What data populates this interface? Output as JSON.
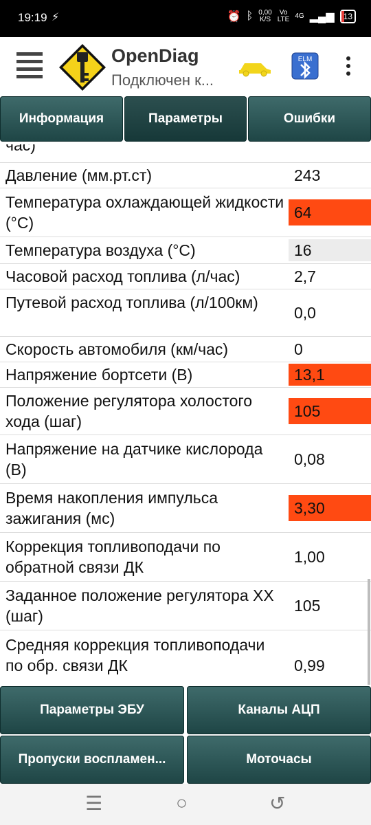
{
  "status_bar": {
    "time": "19:19",
    "speed_top": "0,00",
    "speed_bottom": "K/S",
    "net1": "Vo",
    "net1b": "LTE",
    "net2": "4G",
    "battery": "13"
  },
  "app": {
    "title": "OpenDiag",
    "subtitle": "Подключен к...",
    "elm_label": "ELM"
  },
  "tabs": [
    "Информация",
    "Параметры",
    "Ошибки"
  ],
  "rows": [
    {
      "name": "час)",
      "value": "",
      "style": "",
      "h": 46
    },
    {
      "name": "Давление (мм.рт.ст)",
      "value": "243",
      "style": "",
      "h": 36
    },
    {
      "name": "Температура охлаждающей жидкости (°C)",
      "value": "64",
      "style": "hl",
      "h": 70
    },
    {
      "name": "Температура воздуха (°C)",
      "value": "16",
      "style": "grey",
      "h": 38
    },
    {
      "name": "Часовой расход топлива (л/час)",
      "value": "2,7",
      "style": "",
      "h": 36
    },
    {
      "name": "Путевой расход топлива (л/100км)",
      "value": "0,0",
      "style": "",
      "h": 68
    },
    {
      "name": "Скорость автомобиля (км/час)",
      "value": "0",
      "style": "",
      "h": 36
    },
    {
      "name": "Напряжение бортсети (В)",
      "value": "13,1",
      "style": "hl",
      "h": 36
    },
    {
      "name": "Положение регулятора холостого хода (шаг)",
      "value": "105",
      "style": "hl",
      "h": 68
    },
    {
      "name": "Напряжение на датчике кислорода (В)",
      "value": "0,08",
      "style": "",
      "h": 70
    },
    {
      "name": "Время накопления импульса зажигания (мс)",
      "value": "3,30",
      "style": "hl",
      "h": 70
    },
    {
      "name": "Коррекция топливоподачи по обратной связи ДК",
      "value": "1,00",
      "style": "",
      "h": 70
    },
    {
      "name": "Заданное положение регулятора ХХ (шаг)",
      "value": "105",
      "style": "",
      "h": 70
    },
    {
      "name": "Средняя коррекция топливоподачи по обр. связи ДК",
      "value": "0,99",
      "style": "",
      "h": 102
    }
  ],
  "bottom_buttons": [
    "Параметры ЭБУ",
    "Каналы АЦП",
    "Пропуски воспламен...",
    "Моточасы"
  ],
  "colors": {
    "highlight": "#ff4a12",
    "button": "#2c5555"
  }
}
